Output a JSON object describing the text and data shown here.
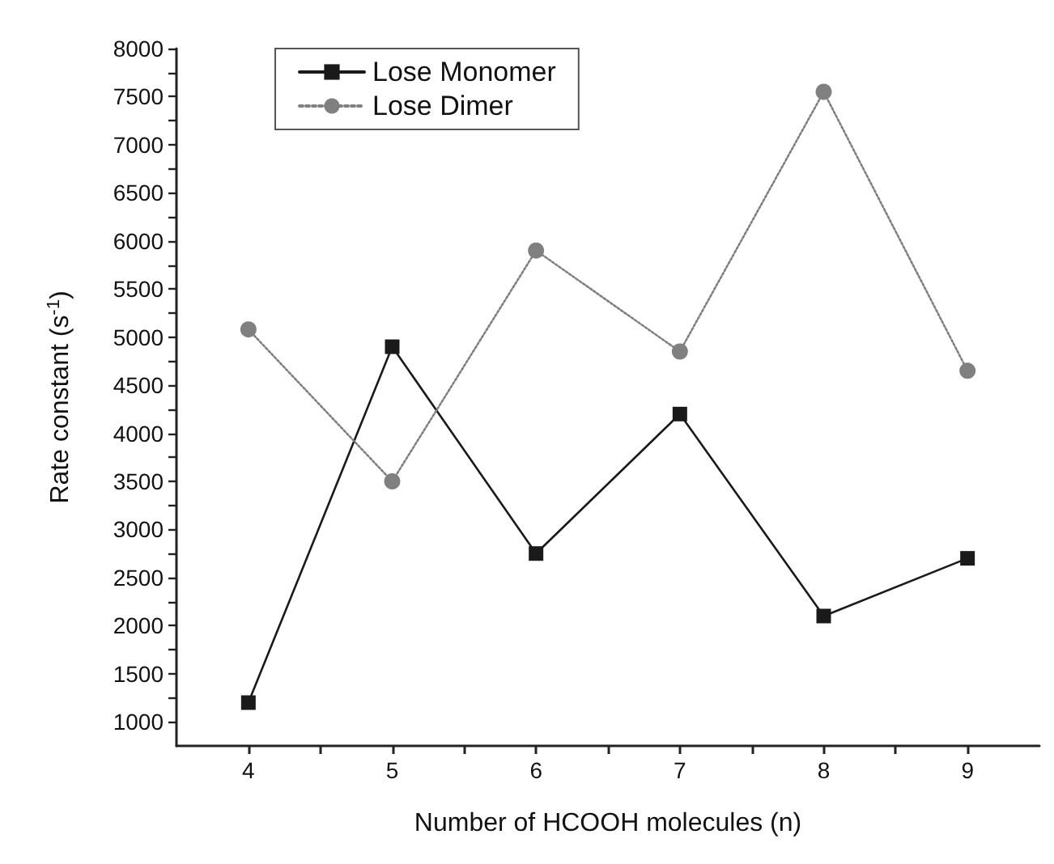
{
  "chart_data": {
    "type": "line",
    "xlabel": "Number of HCOOH molecules (n)",
    "ylabel": "Rate constant (s$^{-1}$)",
    "x": [
      4,
      5,
      6,
      7,
      8,
      9
    ],
    "series": [
      {
        "name": "Lose Monomer",
        "color": "#1a1a1a",
        "marker": "square",
        "line_style": "solid",
        "values": [
          1200,
          4900,
          2750,
          4200,
          2100,
          2700
        ]
      },
      {
        "name": "Lose Dimer",
        "color": "#808080",
        "marker": "circle",
        "line_style": "dotted",
        "values": [
          5080,
          3500,
          5900,
          4850,
          7550,
          4650
        ]
      }
    ],
    "xlim": [
      3.5,
      9.5
    ],
    "xticks": [
      4,
      {
        "value": 4.5,
        "label": null
      },
      5,
      {
        "value": 5.5,
        "label": null
      },
      6,
      {
        "value": 6.5,
        "label": null
      },
      7,
      {
        "value": 7.5,
        "label": null
      },
      8,
      {
        "value": 8.5,
        "label": null
      },
      9
    ],
    "ylim": [
      750,
      8000
    ],
    "yticks": [
      1000,
      {
        "value": 1250,
        "label": null
      },
      1500,
      {
        "value": 1750,
        "label": null
      },
      2000,
      {
        "value": 2250,
        "label": null
      },
      2500,
      {
        "value": 2750,
        "label": null
      },
      3000,
      {
        "value": 3250,
        "label": null
      },
      3500,
      {
        "value": 3750,
        "label": null
      },
      4000,
      {
        "value": 4250,
        "label": null
      },
      4500,
      {
        "value": 4750,
        "label": null
      },
      5000,
      {
        "value": 5250,
        "label": null
      },
      5500,
      {
        "value": 5750,
        "label": null
      },
      6000,
      {
        "value": 6250,
        "label": null
      },
      6500,
      {
        "value": 6750,
        "label": null
      },
      7000,
      {
        "value": 7250,
        "label": null
      },
      7500,
      {
        "value": 7750,
        "label": null
      },
      8000
    ],
    "grid": false,
    "legend": "top left"
  }
}
